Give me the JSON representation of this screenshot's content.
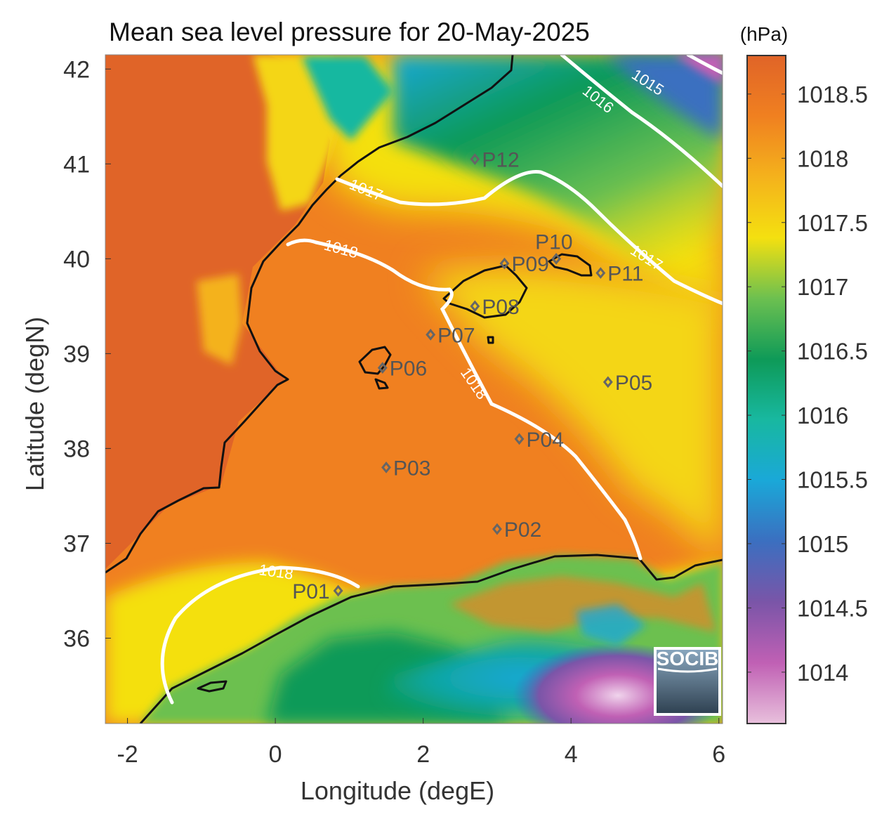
{
  "title": "Mean sea level pressure for 20-May-2025",
  "x_axis": {
    "label": "Longitude (degE)",
    "ticks": [
      "-2",
      "0",
      "2",
      "4",
      "6"
    ],
    "range": [
      -2.3,
      6.05
    ]
  },
  "y_axis": {
    "label": "Latitude (degN)",
    "ticks": [
      "36",
      "37",
      "38",
      "39",
      "40",
      "41",
      "42"
    ],
    "range": [
      35.1,
      42.15
    ]
  },
  "colorbar": {
    "unit": "(hPa)",
    "ticks": [
      "1014",
      "1014.5",
      "1015",
      "1015.5",
      "1016",
      "1016.5",
      "1017",
      "1017.5",
      "1018",
      "1018.5"
    ],
    "range": [
      1013.6,
      1018.8
    ],
    "colormap": [
      "#e8c0dc",
      "#c060b4",
      "#7a55a8",
      "#3b6fc0",
      "#1aa8d8",
      "#18b8a0",
      "#0e9a58",
      "#6cc050",
      "#f4e010",
      "#f4b21c",
      "#f08020",
      "#e06428"
    ]
  },
  "stations": [
    {
      "name": "P01",
      "lon": 0.85,
      "lat": 36.5
    },
    {
      "name": "P02",
      "lon": 3.0,
      "lat": 37.15
    },
    {
      "name": "P03",
      "lon": 1.5,
      "lat": 37.8
    },
    {
      "name": "P04",
      "lon": 3.3,
      "lat": 38.1
    },
    {
      "name": "P05",
      "lon": 4.5,
      "lat": 38.7
    },
    {
      "name": "P06",
      "lon": 1.45,
      "lat": 38.85
    },
    {
      "name": "P07",
      "lon": 2.1,
      "lat": 39.2
    },
    {
      "name": "P08",
      "lon": 2.7,
      "lat": 39.5
    },
    {
      "name": "P09",
      "lon": 3.1,
      "lat": 39.95
    },
    {
      "name": "P10",
      "lon": 3.8,
      "lat": 40.0
    },
    {
      "name": "P11",
      "lon": 4.4,
      "lat": 39.85
    },
    {
      "name": "P12",
      "lon": 2.7,
      "lat": 41.05
    }
  ],
  "contour_labels": [
    "1015",
    "1016",
    "1017",
    "1018"
  ],
  "logo": {
    "text": "SOCIB"
  },
  "colors": {
    "land_orange": "#e06428",
    "sea_orange": "#f08020",
    "contour": "#ffffff",
    "coastline": "#111111",
    "station": "#666666"
  }
}
